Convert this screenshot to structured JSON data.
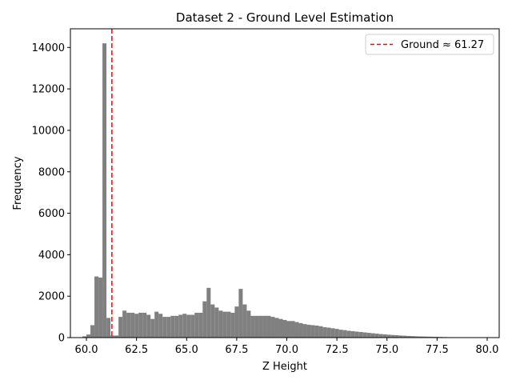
{
  "chart_data": {
    "type": "bar",
    "title": "Dataset 2 - Ground Level Estimation",
    "xlabel": "Z Height",
    "ylabel": "Frequency",
    "xlim": [
      59.2,
      80.6
    ],
    "ylim": [
      0,
      14900
    ],
    "xticks": [
      60.0,
      62.5,
      65.0,
      67.5,
      70.0,
      72.5,
      75.0,
      77.5,
      80.0
    ],
    "xtick_labels": [
      "60.0",
      "62.5",
      "65.0",
      "67.5",
      "70.0",
      "72.5",
      "75.0",
      "77.5",
      "80.0"
    ],
    "yticks": [
      0,
      2000,
      4000,
      6000,
      8000,
      10000,
      12000,
      14000
    ],
    "ytick_labels": [
      "0",
      "2000",
      "4000",
      "6000",
      "8000",
      "10000",
      "12000",
      "14000"
    ],
    "bar_color": "#808080",
    "bin_width": 0.2,
    "bins_start": 59.4,
    "counts": [
      0,
      20,
      60,
      150,
      600,
      2950,
      2900,
      14200,
      950,
      100,
      100,
      1000,
      1300,
      1200,
      1200,
      1150,
      1200,
      1200,
      1100,
      900,
      1250,
      1150,
      1000,
      1000,
      1050,
      1050,
      1100,
      1150,
      1100,
      1100,
      1200,
      1200,
      1750,
      2400,
      1600,
      1450,
      1300,
      1250,
      1250,
      1200,
      1500,
      2350,
      1600,
      1300,
      1050,
      1050,
      1050,
      1050,
      1050,
      1000,
      950,
      900,
      850,
      800,
      800,
      750,
      700,
      650,
      620,
      600,
      580,
      550,
      500,
      480,
      450,
      420,
      380,
      360,
      330,
      310,
      290,
      270,
      250,
      230,
      210,
      190,
      170,
      155,
      140,
      125,
      115,
      100,
      90,
      80,
      70,
      60,
      55,
      50,
      45,
      40,
      35,
      30,
      25,
      20,
      15,
      10
    ],
    "reference_line": {
      "x": 61.27,
      "label": "Ground ≈ 61.27",
      "color": "#ff0000",
      "style": "dashed"
    },
    "legend_position": "top-right",
    "grid": false
  }
}
